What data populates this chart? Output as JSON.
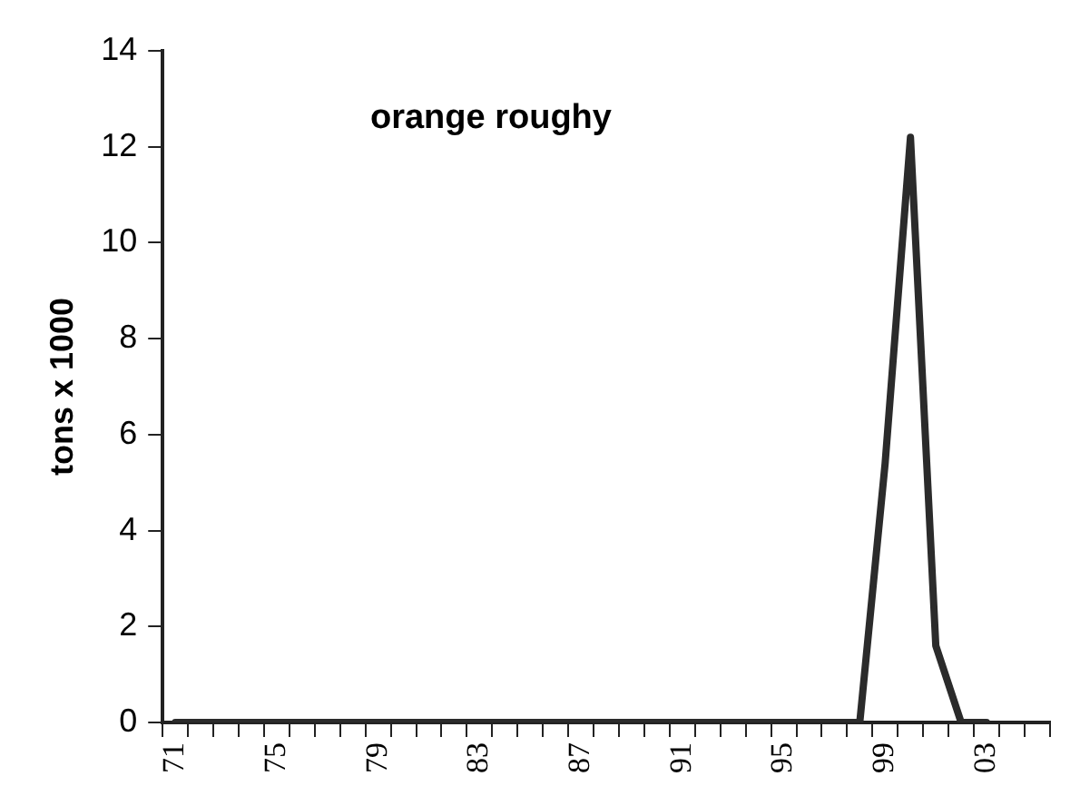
{
  "chart_data": {
    "type": "line",
    "title": "orange roughy",
    "ylabel": "tons x 1000",
    "categories": [
      "71",
      null,
      null,
      null,
      "75",
      null,
      null,
      null,
      "79",
      null,
      null,
      null,
      "83",
      null,
      null,
      null,
      "87",
      null,
      null,
      null,
      "91",
      null,
      null,
      null,
      "95",
      null,
      null,
      null,
      "99",
      null,
      null,
      null,
      "03",
      null,
      null
    ],
    "series": [
      {
        "color": "#2b2b2b",
        "values": [
          0,
          0,
          0,
          0,
          0,
          0,
          0,
          0,
          0,
          0,
          0,
          0,
          0,
          0,
          0,
          0,
          0,
          0,
          0,
          0,
          0,
          0,
          0,
          0,
          0,
          0,
          0,
          0,
          5.4,
          12.2,
          1.6,
          0,
          0,
          null,
          null
        ]
      }
    ],
    "ylim": [
      0,
      14
    ],
    "yticks": [
      0,
      2,
      4,
      6,
      8,
      10,
      12,
      14
    ],
    "grid": false,
    "legend": false,
    "marker": "none",
    "line_style": "solid"
  }
}
